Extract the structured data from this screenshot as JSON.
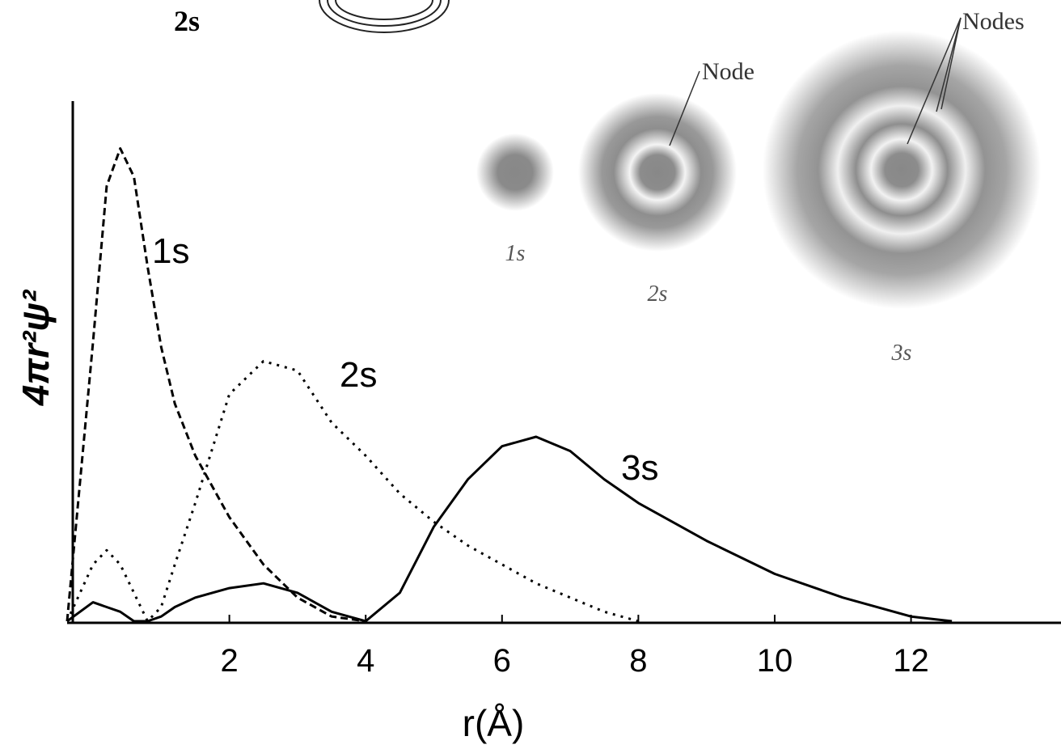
{
  "chart_data": {
    "type": "line",
    "x": [
      -0.38,
      0,
      0.2,
      0.4,
      0.6,
      0.8,
      1.0,
      1.2,
      1.5,
      2,
      2.5,
      3,
      3.5,
      4,
      4.5,
      5,
      5.5,
      6,
      6.5,
      7,
      7.5,
      8,
      9,
      10,
      11,
      12,
      12.6
    ],
    "series": [
      {
        "name": "1s",
        "color": "#000000",
        "dash": "dashed",
        "values": [
          0,
          0.59,
          0.92,
          1.0,
          0.94,
          0.75,
          0.58,
          0.46,
          0.35,
          0.22,
          0.12,
          0.05,
          0.01,
          0,
          null,
          null,
          null,
          null,
          null,
          null,
          null,
          null,
          null,
          null,
          null,
          null,
          null
        ]
      },
      {
        "name": "2s",
        "color": "#000000",
        "dash": "dotted",
        "values": [
          0,
          0.12,
          0.15,
          0.12,
          0.06,
          0,
          0.03,
          0.12,
          0.25,
          0.48,
          0.55,
          0.53,
          0.42,
          0.35,
          0.27,
          0.21,
          0.16,
          0.12,
          0.08,
          0.05,
          0.02,
          0,
          null,
          null,
          null,
          null,
          null
        ]
      },
      {
        "name": "3s",
        "color": "#000000",
        "dash": "solid",
        "values": [
          0,
          0.04,
          0.03,
          0.02,
          0,
          0,
          0.01,
          0.03,
          0.05,
          0.07,
          0.08,
          0.06,
          0.02,
          0,
          0.06,
          0.2,
          0.3,
          0.37,
          0.39,
          0.36,
          0.3,
          0.25,
          0.17,
          0.1,
          0.05,
          0.01,
          0
        ]
      }
    ],
    "xlim": [
      -0.38,
      14.2
    ],
    "ylim": [
      0,
      1.1
    ],
    "xticks": [
      2,
      4,
      6,
      8,
      10,
      12
    ],
    "xlabel": "r(Å)",
    "ylabel": "4πr²ψ²",
    "inset": {
      "header": "2s",
      "labels": [
        "1s",
        "2s",
        "3s"
      ],
      "node": "Node",
      "nodes": "Nodes"
    }
  }
}
